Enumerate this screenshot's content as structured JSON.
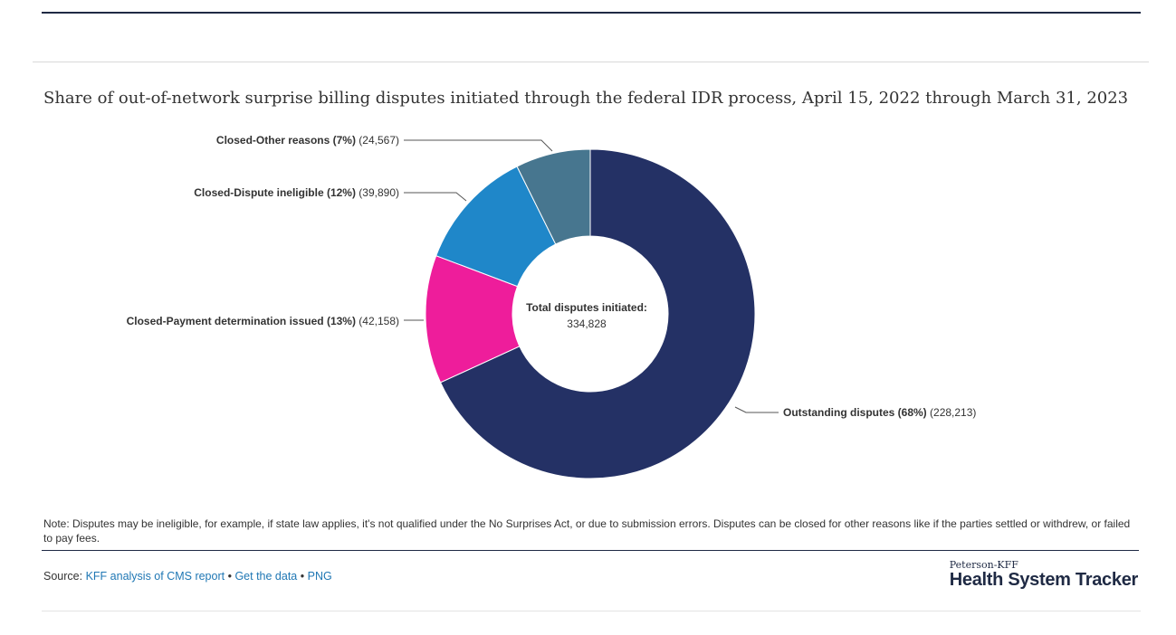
{
  "title": "Share of out-of-network surprise billing disputes initiated through the federal IDR process, April 15, 2022 through March 31, 2023",
  "chart_data": {
    "type": "pie",
    "donut": true,
    "center_label": "Total disputes initiated:",
    "center_value": "334,828",
    "slices": [
      {
        "label": "Outstanding disputes",
        "percent_label": "(68%)",
        "value": 228213,
        "value_label": "(228,213)",
        "color": "#243165"
      },
      {
        "label": "Closed-Payment determination issued",
        "percent_label": "(13%)",
        "value": 42158,
        "value_label": "(42,158)",
        "color": "#ee1d9b"
      },
      {
        "label": "Closed-Dispute ineligible",
        "percent_label": "(12%)",
        "value": 39890,
        "value_label": "(39,890)",
        "color": "#1f87c9"
      },
      {
        "label": "Closed-Other reasons",
        "percent_label": "(7%)",
        "value": 24567,
        "value_label": "(24,567)",
        "color": "#47768f"
      }
    ]
  },
  "note": "Note: Disputes may be ineligible, for example, if state law applies, it's not qualified under the No Surprises Act, or due to submission errors. Disputes can be closed for other reasons like if the parties settled or withdrew, or failed to pay fees.",
  "source": {
    "prefix": "Source:",
    "link1": "KFF analysis of CMS report",
    "sep": "•",
    "link2": "Get the data",
    "link3": "PNG"
  },
  "logo": {
    "small": "Peterson-KFF",
    "big": "Health System Tracker"
  }
}
